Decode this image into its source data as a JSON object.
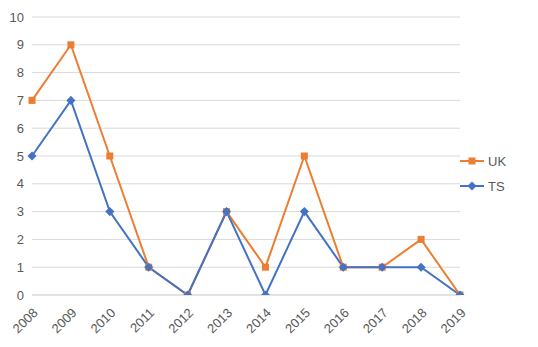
{
  "chart_data": {
    "type": "line",
    "categories": [
      "2008",
      "2009",
      "2010",
      "2011",
      "2012",
      "2013",
      "2014",
      "2015",
      "2016",
      "2017",
      "2018",
      "2019"
    ],
    "series": [
      {
        "name": "UK",
        "color": "#ed7d31",
        "marker": "square",
        "values": [
          7,
          9,
          5,
          1,
          0,
          3,
          1,
          5,
          1,
          1,
          2,
          0
        ]
      },
      {
        "name": "TS",
        "color": "#4472c4",
        "marker": "diamond",
        "values": [
          5,
          7,
          3,
          1,
          0,
          3,
          0,
          3,
          1,
          1,
          1,
          0
        ]
      }
    ],
    "ylim": [
      0,
      10
    ],
    "yticks": [
      0,
      1,
      2,
      3,
      4,
      5,
      6,
      7,
      8,
      9,
      10
    ],
    "grid": true,
    "legend": "right"
  }
}
